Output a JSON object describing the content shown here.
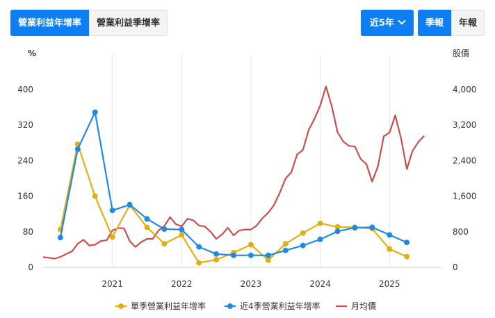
{
  "tabs": [
    {
      "label": "營業利益年增率",
      "active": true
    },
    {
      "label": "營業利益季增率",
      "active": false
    }
  ],
  "range": {
    "label": "近5年"
  },
  "period": [
    {
      "label": "季報",
      "active": true
    },
    {
      "label": "年報",
      "active": false
    }
  ],
  "colors": {
    "accent": "#0d7ff2",
    "single": "#e0b012",
    "rolling": "#1f8ae0",
    "price": "#c84e4e"
  },
  "chart_data": {
    "type": "line",
    "left_axis": {
      "unit": "%",
      "ticks": [
        0,
        80,
        160,
        240,
        320,
        400
      ],
      "range": [
        0,
        400
      ]
    },
    "right_axis": {
      "unit": "股價",
      "ticks": [
        0,
        800,
        1600,
        2400,
        3200,
        4000
      ],
      "tick_labels": [
        "0",
        "800",
        "1,600",
        "2,400",
        "3,200",
        "4,000"
      ],
      "range": [
        0,
        4000
      ]
    },
    "x_axis": {
      "range": [
        2020.0,
        2025.75
      ],
      "ticks": [
        2021,
        2022,
        2023,
        2024,
        2025
      ],
      "tick_labels": [
        "2021",
        "2022",
        "2023",
        "2024",
        "2025"
      ]
    },
    "series": [
      {
        "name": "單季營業利益年增率",
        "axis": "left",
        "markers": true,
        "x": [
          2020.25,
          2020.5,
          2020.75,
          2021.0,
          2021.25,
          2021.5,
          2021.75,
          2022.0,
          2022.25,
          2022.5,
          2022.75,
          2023.0,
          2023.25,
          2023.5,
          2023.75,
          2024.0,
          2024.25,
          2024.5,
          2024.75,
          2025.0,
          2025.25
        ],
        "y": [
          85,
          277,
          160,
          68,
          140,
          90,
          53,
          73,
          10,
          17,
          33,
          51,
          16,
          53,
          77,
          99,
          91,
          90,
          87,
          41,
          24
        ]
      },
      {
        "name": "近4季營業利益年增率",
        "axis": "left",
        "markers": true,
        "x": [
          2020.25,
          2020.5,
          2020.75,
          2021.0,
          2021.25,
          2021.5,
          2021.75,
          2022.0,
          2022.25,
          2022.5,
          2022.75,
          2023.0,
          2023.25,
          2023.5,
          2023.75,
          2024.0,
          2024.25,
          2024.5,
          2024.75,
          2025.0,
          2025.25
        ],
        "y": [
          67,
          266,
          349,
          128,
          141,
          109,
          86,
          85,
          46,
          30,
          27,
          27,
          27,
          38,
          49,
          63,
          81,
          89,
          90,
          73,
          56
        ]
      },
      {
        "name": "月均價",
        "axis": "right",
        "markers": false,
        "x": [
          2020.0,
          2020.083,
          2020.167,
          2020.25,
          2020.333,
          2020.417,
          2020.5,
          2020.583,
          2020.667,
          2020.75,
          2020.833,
          2020.917,
          2021.0,
          2021.083,
          2021.167,
          2021.25,
          2021.333,
          2021.417,
          2021.5,
          2021.583,
          2021.667,
          2021.75,
          2021.833,
          2021.917,
          2022.0,
          2022.083,
          2022.167,
          2022.25,
          2022.333,
          2022.417,
          2022.5,
          2022.583,
          2022.667,
          2022.75,
          2022.833,
          2022.917,
          2023.0,
          2023.083,
          2023.167,
          2023.25,
          2023.333,
          2023.417,
          2023.5,
          2023.583,
          2023.667,
          2023.75,
          2023.833,
          2023.917,
          2024.0,
          2024.083,
          2024.167,
          2024.25,
          2024.333,
          2024.417,
          2024.5,
          2024.583,
          2024.667,
          2024.75,
          2024.833,
          2024.917,
          2025.0,
          2025.083,
          2025.167,
          2025.25,
          2025.333,
          2025.417,
          2025.5
        ],
        "y": [
          230,
          215,
          195,
          235,
          300,
          360,
          530,
          620,
          490,
          510,
          590,
          610,
          830,
          880,
          880,
          590,
          460,
          570,
          640,
          640,
          830,
          930,
          1130,
          970,
          920,
          1090,
          1060,
          940,
          920,
          800,
          640,
          740,
          890,
          720,
          830,
          850,
          850,
          940,
          1110,
          1230,
          1400,
          1680,
          2000,
          2140,
          2540,
          2640,
          3090,
          3340,
          3640,
          4070,
          3620,
          3040,
          2830,
          2730,
          2720,
          2440,
          2320,
          1930,
          2270,
          2950,
          3030,
          3420,
          2900,
          2210,
          2620,
          2820,
          2960
        ]
      }
    ],
    "legend": {
      "position": "bottom"
    },
    "grid": "vertical"
  }
}
